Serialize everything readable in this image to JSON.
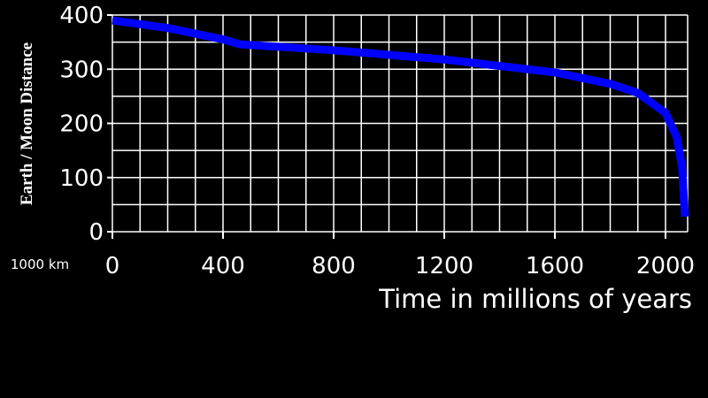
{
  "chart_data": {
    "type": "line",
    "y_label": "Earth / Moon Distance",
    "y_unit": "1000 km",
    "x_label": "Time in millions of years",
    "x": [
      0,
      200,
      400,
      460,
      800,
      1200,
      1600,
      1800,
      1900,
      2000,
      2040,
      2060,
      2070
    ],
    "series": [
      {
        "name": "Earth-Moon distance",
        "color": "#0000ff",
        "values": [
          390,
          376,
          355,
          346,
          335,
          318,
          294,
          273,
          256,
          219,
          175,
          118,
          28
        ]
      }
    ],
    "xlim": [
      0,
      2080
    ],
    "xticks": [
      0,
      400,
      800,
      1200,
      1600,
      2000
    ],
    "x_grid": [
      0,
      100,
      200,
      300,
      400,
      500,
      600,
      700,
      800,
      900,
      1000,
      1100,
      1200,
      1300,
      1400,
      1500,
      1600,
      1700,
      1800,
      1900,
      2000
    ],
    "ylim": [
      0,
      400
    ],
    "yticks": [
      0,
      100,
      200,
      300,
      400
    ],
    "y_grid": [
      0,
      50,
      100,
      150,
      200,
      250,
      300,
      350,
      400
    ],
    "grid": true
  }
}
